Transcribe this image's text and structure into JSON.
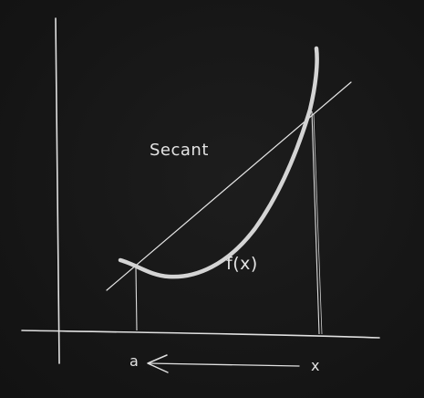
{
  "labels": {
    "secant": "Secant",
    "function": "f(x)",
    "point_a": "a",
    "point_x": "x"
  },
  "colors": {
    "background": "#181818",
    "ink": "#e3e3e3",
    "curve": "#d4d4d4"
  }
}
